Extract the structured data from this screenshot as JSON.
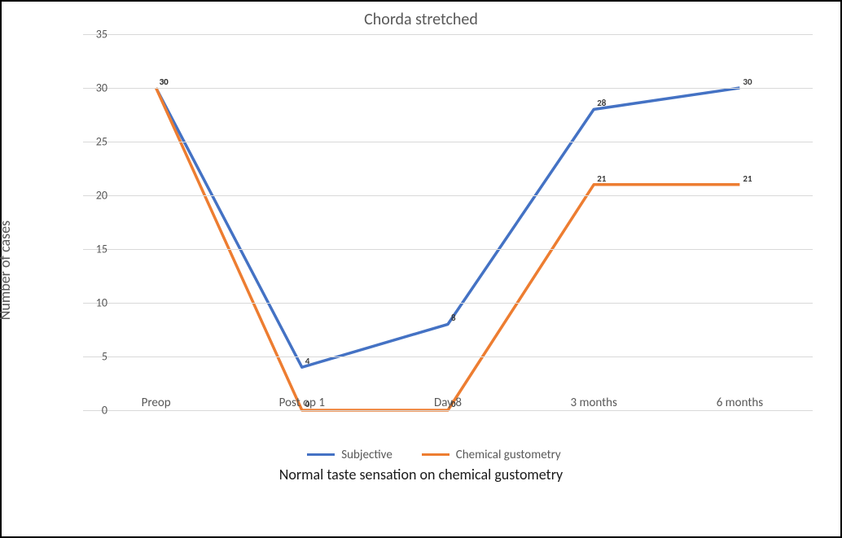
{
  "chart": {
    "type": "line",
    "title": "Chorda stretched",
    "title_fontsize": 20,
    "ylabel": "Number of cases",
    "label_fontsize": 18,
    "background_color": "#ffffff",
    "axis_line_color": "#d9d9d9",
    "grid_color": "#d9d9d9",
    "tick_label_color": "#595959",
    "tick_fontsize": 14,
    "ylim": [
      0,
      35
    ],
    "ytick_step": 5,
    "yticks": [
      0,
      5,
      10,
      15,
      20,
      25,
      30,
      35
    ],
    "categories": [
      "Preop",
      "Post op 1",
      "Day 8",
      "3 months",
      "6 months"
    ],
    "line_width": 3.5,
    "data_label_fontsize": 11,
    "data_label_color": "#3a3a3a",
    "series": [
      {
        "name": "Subjective",
        "color": "#4472c4",
        "values": [
          30,
          4,
          8,
          28,
          30
        ]
      },
      {
        "name": "Chemical gustometry",
        "color": "#ed7d31",
        "values": [
          30,
          0,
          0,
          21,
          21
        ]
      }
    ],
    "legend_position": "bottom",
    "legend_fontsize": 15,
    "caption": "Normal taste sensation on chemical gustometry",
    "caption_fontsize": 18,
    "caption_color": "#1a1a1a"
  }
}
